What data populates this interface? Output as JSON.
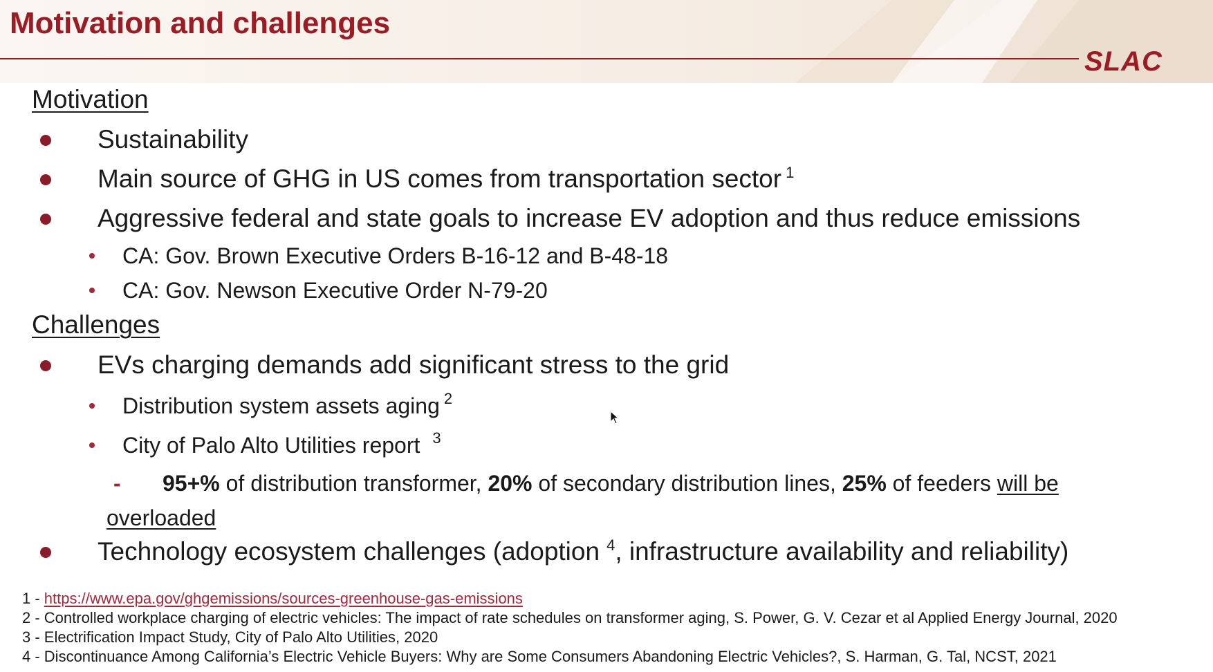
{
  "title": "Motivation and challenges",
  "logo": {
    "text": "SLAC"
  },
  "motivation": {
    "heading": "Motivation",
    "items": [
      {
        "text": "Sustainability"
      },
      {
        "text": "Main source of GHG in US comes from transportation sector",
        "ref": "1"
      },
      {
        "text": "Aggressive federal and state goals to increase EV adoption and thus reduce emissions",
        "subitems": [
          "CA: Gov. Brown Executive Orders B-16-12 and B-48-18",
          "CA: Gov. Newson Executive Order N-79-20"
        ]
      }
    ]
  },
  "challenges": {
    "heading": "Challenges",
    "item1": {
      "text": "EVs charging demands add significant stress to the grid",
      "sub1": {
        "text": "Distribution system assets aging",
        "ref": "2"
      },
      "sub2": {
        "text": "City of Palo Alto Utilities report",
        "ref": "3"
      },
      "detail": {
        "dash": "-",
        "v1": "95+%",
        "t1": " of distribution transformer, ",
        "v2": "20%",
        "t2": " of secondary distribution lines, ",
        "v3": "25%",
        "t3": " of feeders ",
        "u1": "will be",
        "u2": "overloaded"
      }
    },
    "item2": {
      "pre": "Technology ecosystem challenges (adoption",
      "ref": "4",
      "post": ", infrastructure availability and reliability)"
    }
  },
  "footnotes": [
    {
      "prefix": "1 - ",
      "link": "https://www.epa.gov/ghgemissions/sources-greenhouse-gas-emissions"
    },
    {
      "prefix": "2 - ",
      "text": "Controlled workplace charging of electric vehicles: The impact of rate schedules on transformer aging, S. Power, G. V. Cezar et al Applied Energy Journal, 2020"
    },
    {
      "prefix": "3 - ",
      "text": "Electrification Impact Study, City of Palo Alto Utilities, 2020"
    },
    {
      "prefix": "4 - ",
      "text": "Discontinuance Among California’s Electric Vehicle Buyers: Why are Some Consumers Abandoning Electric Vehicles?, S. Harman, G. Tal, NCST, 2021"
    }
  ],
  "colors": {
    "accent": "#9c1c26",
    "bullet": "#8a1c2a",
    "text": "#1a1a1a",
    "header_band": "#f6ede4"
  }
}
